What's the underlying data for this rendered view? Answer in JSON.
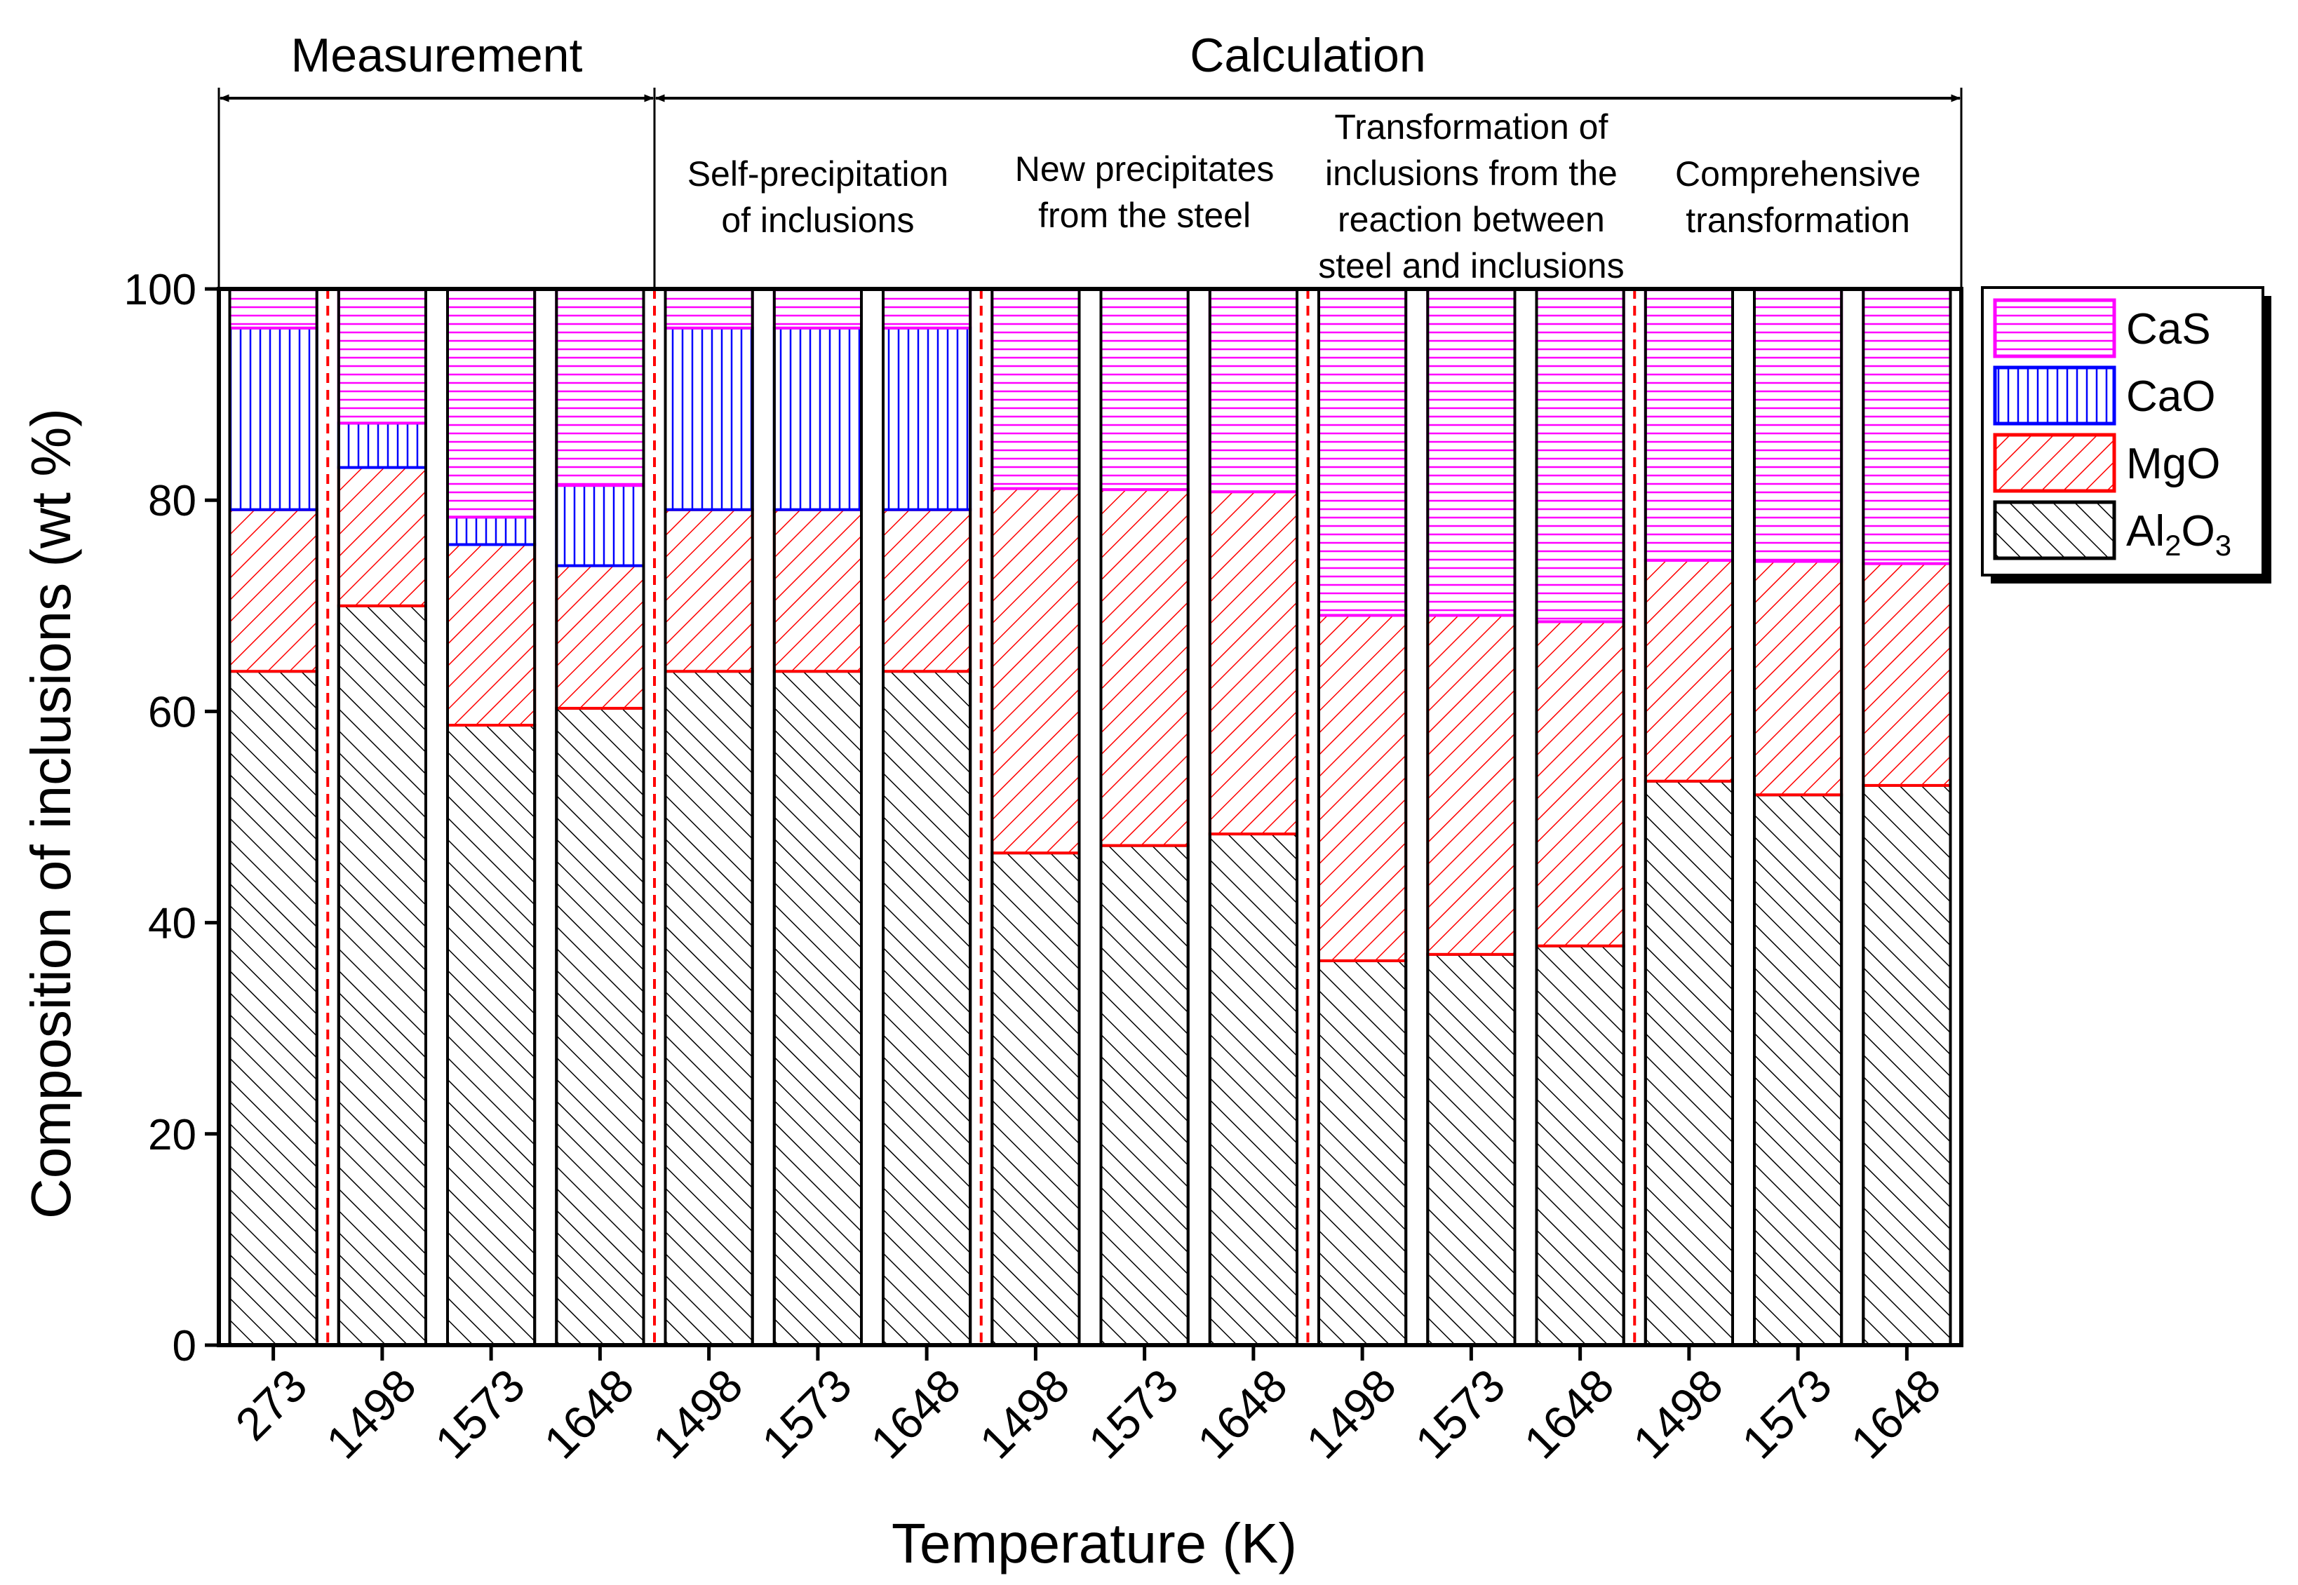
{
  "chart_data": {
    "type": "bar",
    "stacked": true,
    "xlabel": "Temperature (K)",
    "ylabel": "Composition of inclusions (wt %)",
    "ylim": [
      0,
      100
    ],
    "yticks": [
      0,
      20,
      40,
      60,
      80,
      100
    ],
    "categories": [
      "273",
      "1498",
      "1573",
      "1648",
      "1498",
      "1573",
      "1648",
      "1498",
      "1573",
      "1648",
      "1498",
      "1573",
      "1648",
      "1498",
      "1573",
      "1648"
    ],
    "series": [
      {
        "name": "Al2O3",
        "legend_main": "Al",
        "legend_sub1": "2",
        "legend_mid": "O",
        "legend_sub2": "3",
        "color": "#000000",
        "pattern": "diag-black",
        "values": [
          63.8,
          70.0,
          58.7,
          60.3,
          63.8,
          63.8,
          63.8,
          46.6,
          47.3,
          48.4,
          36.4,
          37.0,
          37.8,
          53.4,
          52.1,
          53.0
        ]
      },
      {
        "name": "MgO",
        "color": "#ff0000",
        "pattern": "diag-red",
        "values": [
          15.3,
          13.1,
          17.1,
          13.5,
          15.3,
          15.3,
          15.3,
          34.5,
          33.7,
          32.4,
          32.7,
          32.1,
          30.7,
          20.9,
          22.1,
          21.0
        ]
      },
      {
        "name": "CaO",
        "color": "#0000ff",
        "pattern": "vert-blue",
        "values": [
          17.2,
          4.2,
          2.6,
          7.6,
          17.2,
          17.2,
          17.2,
          0,
          0,
          0,
          0,
          0,
          0,
          0,
          0,
          0
        ]
      },
      {
        "name": "CaS",
        "color": "#ff00ff",
        "pattern": "horiz-magenta",
        "values": [
          3.7,
          12.7,
          21.6,
          18.6,
          3.7,
          3.7,
          3.7,
          18.9,
          19.0,
          19.2,
          30.9,
          30.9,
          31.5,
          25.7,
          25.8,
          26.0
        ]
      }
    ],
    "groups": [
      {
        "kind": "Measurement",
        "start": 0,
        "end": 3,
        "lines": []
      },
      {
        "kind": "Calculation",
        "start": 4,
        "end": 6,
        "lines": [
          "Self-precipitation",
          "of inclusions"
        ]
      },
      {
        "kind": "Calculation",
        "start": 7,
        "end": 9,
        "lines": [
          "New precipitates",
          "from the steel"
        ]
      },
      {
        "kind": "Calculation",
        "start": 10,
        "end": 12,
        "lines": [
          "Transformation of",
          "inclusions from the",
          "reaction between",
          "steel and inclusions"
        ]
      },
      {
        "kind": "Calculation",
        "start": 13,
        "end": 15,
        "lines": [
          "Comprehensive",
          "transformation"
        ]
      }
    ],
    "top_brackets": [
      {
        "label": "Measurement",
        "start": 0,
        "end": 3
      },
      {
        "label": "Calculation",
        "start": 4,
        "end": 15
      }
    ],
    "legend_position": "top-right, outside plot",
    "grid": false
  }
}
